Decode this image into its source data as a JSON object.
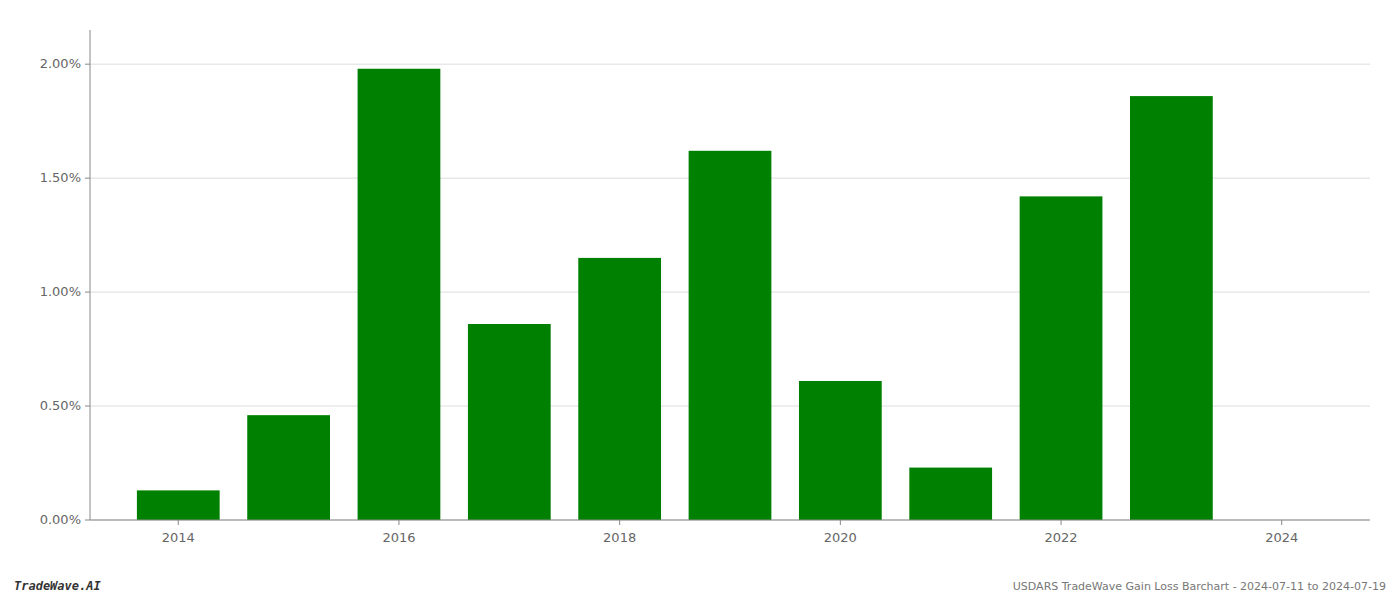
{
  "chart_data": {
    "type": "bar",
    "x": [
      2014,
      2015,
      2016,
      2017,
      2018,
      2019,
      2020,
      2021,
      2022,
      2023
    ],
    "values": [
      0.0013,
      0.0046,
      0.0198,
      0.0086,
      0.0115,
      0.0162,
      0.0061,
      0.0023,
      0.0142,
      0.0186
    ],
    "color": "#008000",
    "xlim": [
      2013.2,
      2024.8
    ],
    "xticks": [
      2014,
      2016,
      2018,
      2020,
      2022,
      2024
    ],
    "ylim": [
      0.0,
      0.0215
    ],
    "yticks": [
      {
        "value": 0.0,
        "label": "0.00%"
      },
      {
        "value": 0.005,
        "label": "0.50%"
      },
      {
        "value": 0.01,
        "label": "1.00%"
      },
      {
        "value": 0.015,
        "label": "1.50%"
      },
      {
        "value": 0.02,
        "label": "2.00%"
      }
    ],
    "grid": true,
    "annotations": [
      "TradeWave.AI",
      "USDARS TradeWave Gain Loss Barchart - 2024-07-11 to 2024-07-19"
    ]
  }
}
